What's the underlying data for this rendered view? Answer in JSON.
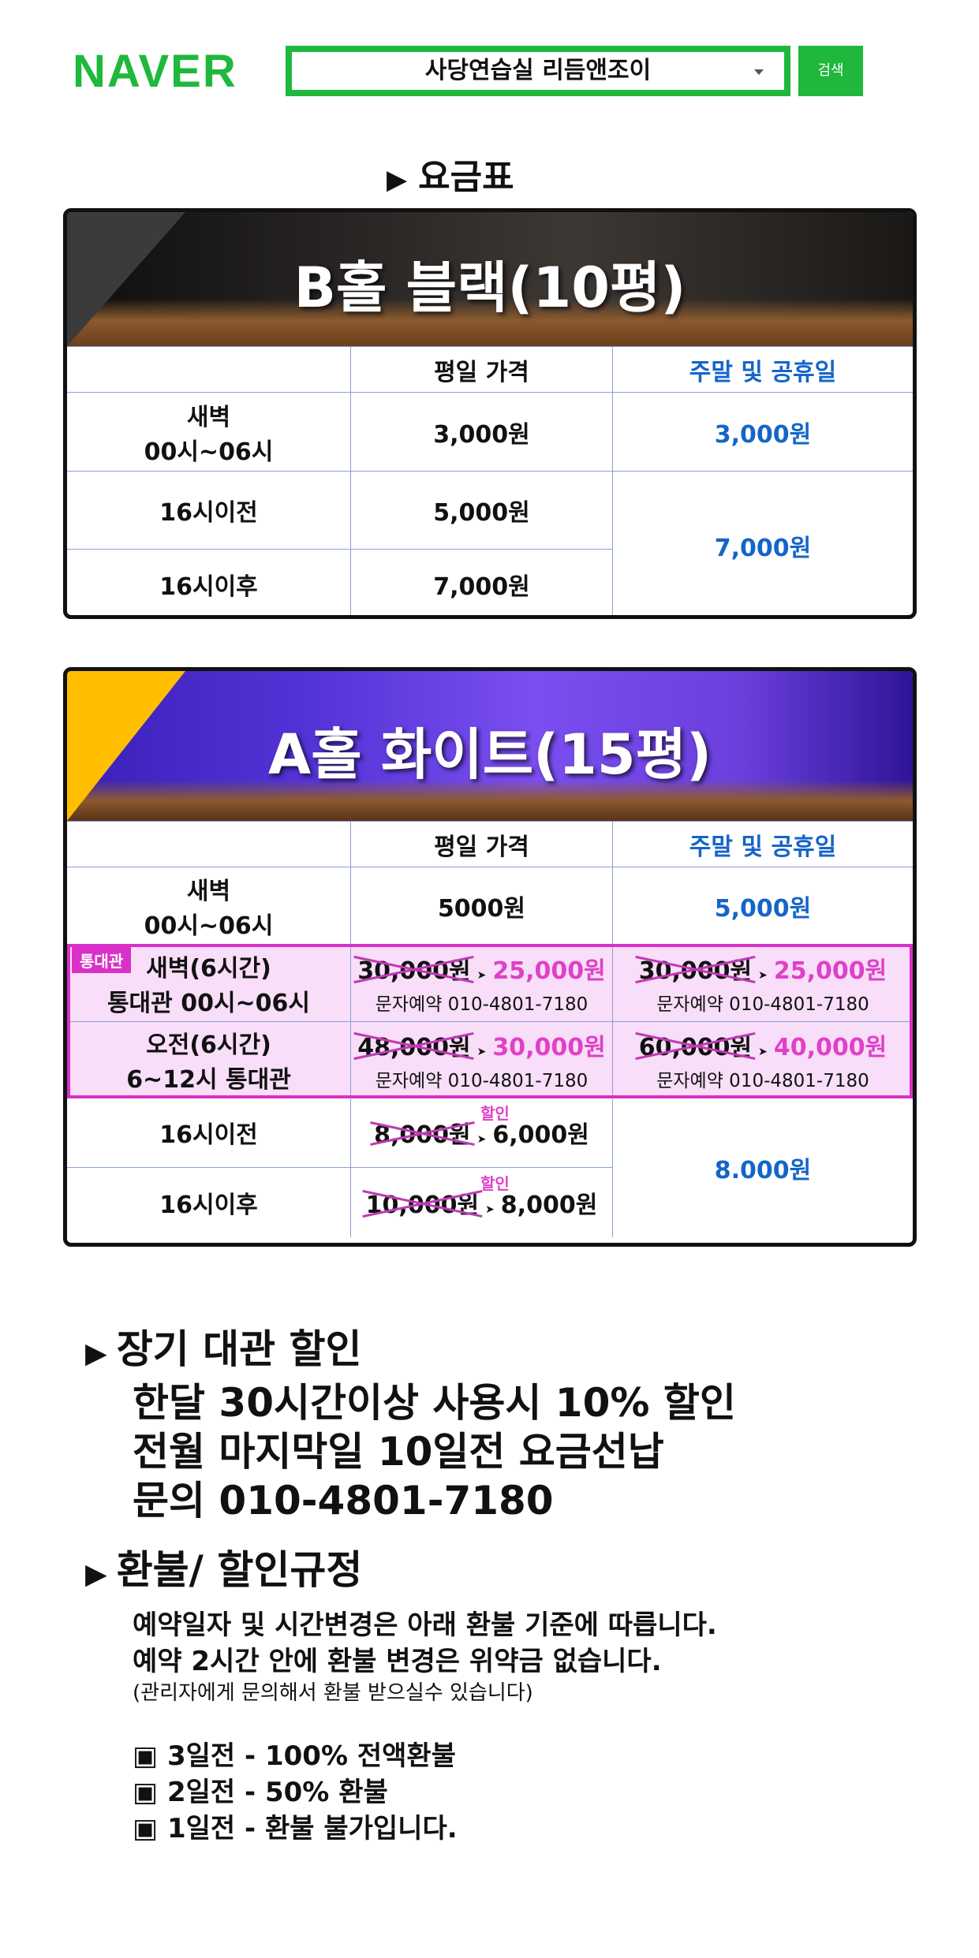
{
  "header": {
    "logo": "NAVER",
    "search_value": "사당연습실 리듬앤조이",
    "search_button": "검색"
  },
  "section_title": "요금표",
  "hall_b": {
    "title": "B홀 블랙(10평)",
    "col_weekday": "평일 가격",
    "col_weekend": "주말 및 공휴일",
    "rows": [
      {
        "label_1": "새벽",
        "label_2": "00시~06시",
        "weekday": "3,000원",
        "weekend": "3,000원"
      },
      {
        "label_1": "16시이전",
        "weekday": "5,000원"
      },
      {
        "label_1": "16시이후",
        "weekday": "7,000원"
      }
    ],
    "weekend_merged": "7,000원"
  },
  "hall_a": {
    "title": "A홀 화이트(15평)",
    "col_weekday": "평일 가격",
    "col_weekend": "주말 및 공휴일",
    "dawn": {
      "label_1": "새벽",
      "label_2": "00시~06시",
      "weekday": "5000원",
      "weekend": "5,000원"
    },
    "full_rent_badge": "통대관",
    "full_rent": [
      {
        "label_1": "새벽(6시간)",
        "label_2": "통대관 00시~06시",
        "weekday_old": "30,000원",
        "weekday_new": "25,000원",
        "weekend_old": "30,000원",
        "weekend_new": "25,000원",
        "contact": "문자예약 010-4801-7180"
      },
      {
        "label_1": "오전(6시간)",
        "label_2": "6~12시 통대관",
        "weekday_old": "48,000원",
        "weekday_new": "30,000원",
        "weekend_old": "60,000원",
        "weekend_new": "40,000원",
        "contact": "문자예약 010-4801-7180"
      }
    ],
    "sale_tag": "할인",
    "before16": {
      "label": "16시이전",
      "old": "8,000원",
      "new": "6,000원"
    },
    "after16": {
      "label": "16시이후",
      "old": "10,000원",
      "new": "8,000원"
    },
    "weekend_merged": "8.000원"
  },
  "long_term": {
    "head": "장기 대관 할인",
    "lines": [
      "한달 30시간이상 사용시 10% 할인",
      "전월 마지막일 10일전 요금선납",
      "문의 010-4801-7180"
    ]
  },
  "refund": {
    "head": "환불/ 할인규정",
    "lines": [
      "예약일자 및 시간변경은 아래 환불 기준에 따릅니다.",
      "예약 2시간 안에 환불 변경은 위약금 없습니다."
    ],
    "note": "(관리자에게 문의해서 환불 받으실수 있습니다)",
    "rules": [
      "3일전 - 100% 전액환불",
      "2일전 - 50% 환불",
      "1일전 - 환불 불가입니다."
    ]
  }
}
